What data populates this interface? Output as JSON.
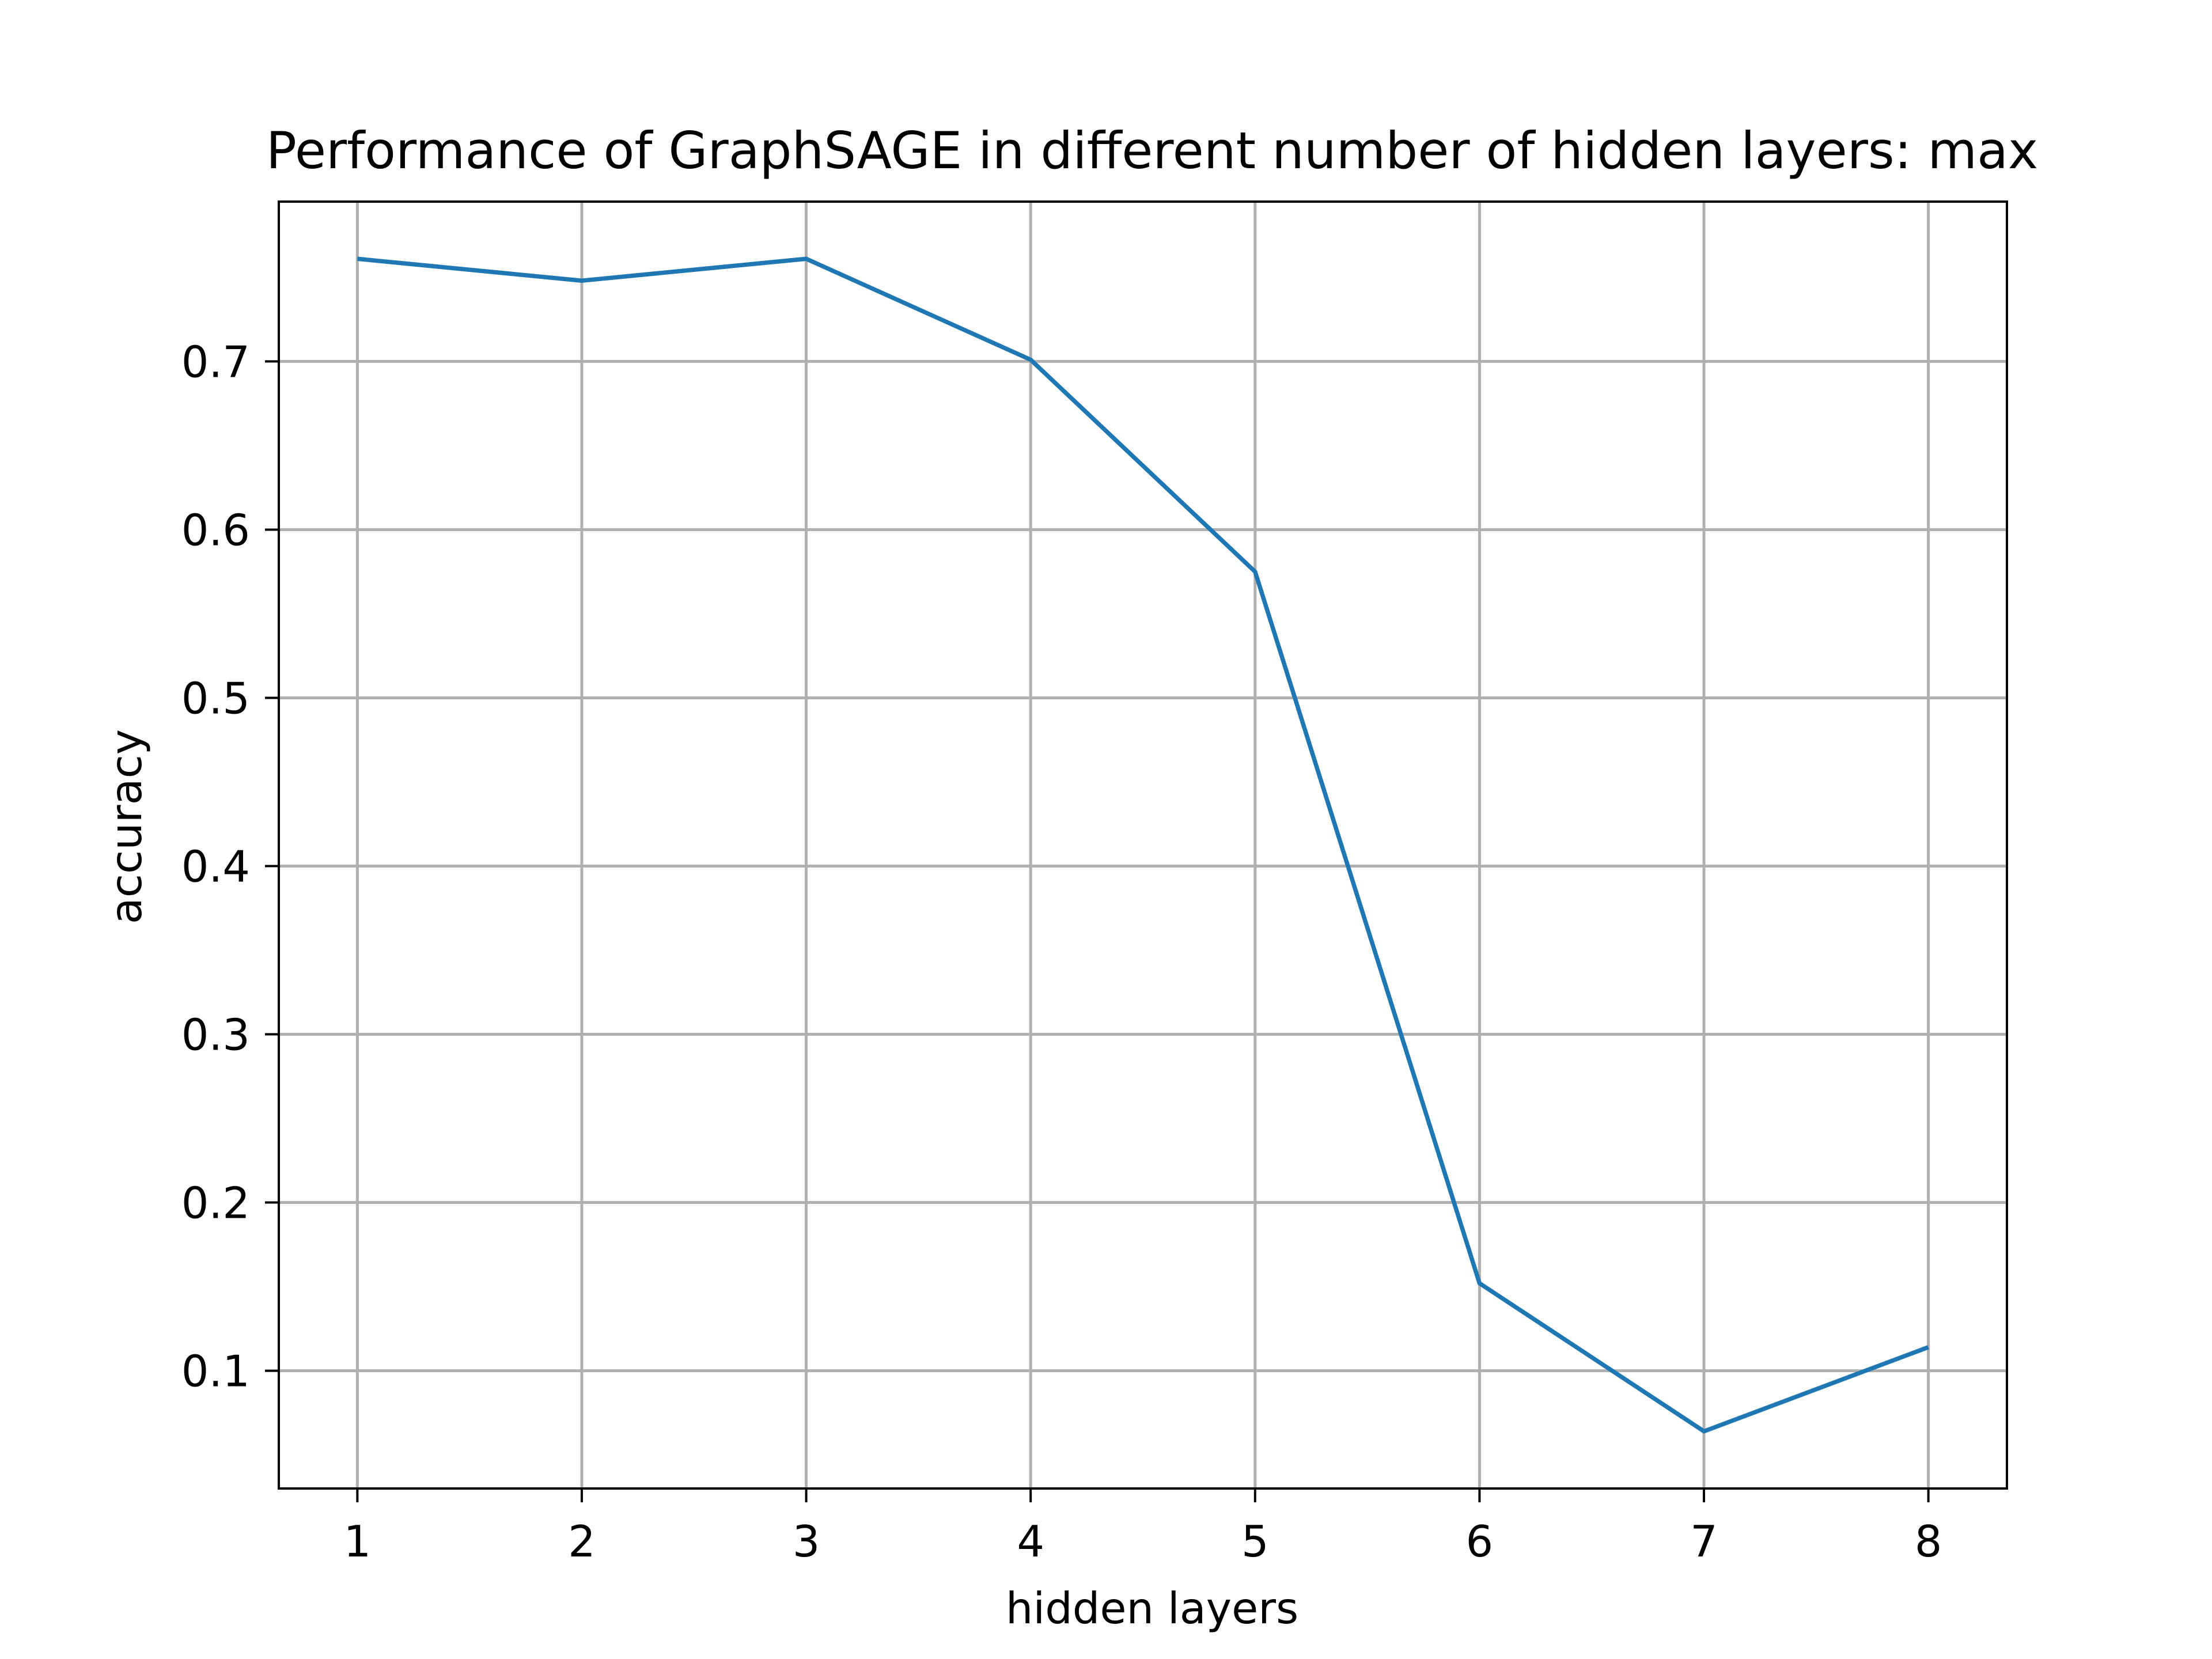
{
  "chart_data": {
    "type": "line",
    "title": "Performance of GraphSAGE in different number of hidden layers: max",
    "xlabel": "hidden layers",
    "ylabel": "accuracy",
    "x": [
      1,
      2,
      3,
      4,
      5,
      6,
      7,
      8
    ],
    "x_ticks": [
      1,
      2,
      3,
      4,
      5,
      6,
      7,
      8
    ],
    "x_tick_labels": [
      "1",
      "2",
      "3",
      "4",
      "5",
      "6",
      "7",
      "8"
    ],
    "y_ticks": [
      0.1,
      0.2,
      0.3,
      0.4,
      0.5,
      0.6,
      0.7
    ],
    "y_tick_labels": [
      "0.1",
      "0.2",
      "0.3",
      "0.4",
      "0.5",
      "0.6",
      "0.7"
    ],
    "xlim": [
      0.65,
      8.35
    ],
    "ylim": [
      0.03,
      0.795
    ],
    "grid": true,
    "series": [
      {
        "color": "#1f77b4",
        "values": [
          0.761,
          0.748,
          0.761,
          0.701,
          0.575,
          0.152,
          0.064,
          0.114
        ]
      }
    ]
  }
}
